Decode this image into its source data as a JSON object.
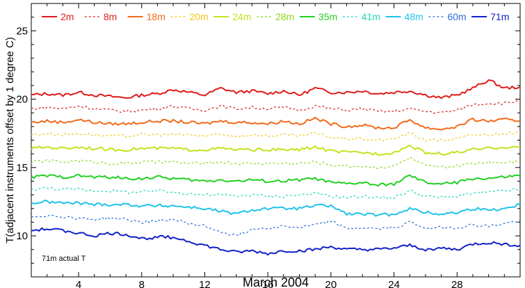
{
  "chart_data": {
    "type": "line",
    "title": "",
    "xlabel": "March 2004",
    "ylabel": "T(adjacent instruments offset by 1 degree C)",
    "xlim": [
      1,
      32
    ],
    "ylim": [
      7,
      27
    ],
    "x_ticks": [
      "4",
      "8",
      "12",
      "16",
      "20",
      "24",
      "28"
    ],
    "y_ticks": [
      "10",
      "15",
      "20",
      "25"
    ],
    "annotation": "71m actual T",
    "legend_position": "top",
    "series": [
      {
        "name": "2m",
        "color": "#e01a1a",
        "dash": "solid",
        "x": [
          1,
          2,
          3,
          4,
          5,
          6,
          7,
          8,
          9,
          10,
          11,
          12,
          13,
          14,
          15,
          16,
          17,
          18,
          19,
          20,
          21,
          22,
          23,
          24,
          25,
          26,
          27,
          28,
          29,
          30,
          31,
          32
        ],
        "y": [
          20.3,
          20.4,
          20.3,
          20.5,
          20.3,
          20.2,
          20.1,
          20.3,
          20.4,
          20.7,
          20.5,
          20.3,
          20.8,
          20.5,
          20.6,
          20.4,
          20.6,
          20.3,
          20.8,
          20.5,
          20.5,
          20.6,
          20.4,
          20.5,
          20.6,
          20.3,
          20.1,
          20.3,
          20.8,
          21.4,
          20.8,
          20.9
        ]
      },
      {
        "name": "8m",
        "color": "#d42222",
        "dash": "dotted",
        "x": [
          1,
          2,
          3,
          4,
          5,
          6,
          7,
          8,
          9,
          10,
          11,
          12,
          13,
          14,
          15,
          16,
          17,
          18,
          19,
          20,
          21,
          22,
          23,
          24,
          25,
          26,
          27,
          28,
          29,
          30,
          31,
          32
        ],
        "y": [
          19.3,
          19.4,
          19.3,
          19.5,
          19.3,
          19.2,
          19.1,
          19.2,
          19.3,
          19.5,
          19.3,
          19.2,
          19.5,
          19.3,
          19.4,
          19.3,
          19.4,
          19.2,
          19.5,
          19.3,
          19.2,
          19.3,
          19.1,
          19.1,
          19.3,
          19.1,
          19.0,
          19.2,
          19.6,
          19.7,
          19.7,
          19.9
        ]
      },
      {
        "name": "18m",
        "color": "#f26a1b",
        "dash": "solid",
        "x": [
          1,
          2,
          3,
          4,
          5,
          6,
          7,
          8,
          9,
          10,
          11,
          12,
          13,
          14,
          15,
          16,
          17,
          18,
          19,
          20,
          21,
          22,
          23,
          24,
          25,
          26,
          27,
          28,
          29,
          30,
          31,
          32
        ],
        "y": [
          18.3,
          18.4,
          18.3,
          18.5,
          18.3,
          18.2,
          18.2,
          18.3,
          18.4,
          18.4,
          18.3,
          18.2,
          18.4,
          18.3,
          18.3,
          18.2,
          18.4,
          18.2,
          18.6,
          18.2,
          18.0,
          18.1,
          17.9,
          17.9,
          18.5,
          17.9,
          17.8,
          18.0,
          18.5,
          18.4,
          18.5,
          18.4
        ]
      },
      {
        "name": "20m",
        "color": "#f5c518",
        "dash": "dotted",
        "x": [
          1,
          2,
          3,
          4,
          5,
          6,
          7,
          8,
          9,
          10,
          11,
          12,
          13,
          14,
          15,
          16,
          17,
          18,
          19,
          20,
          21,
          22,
          23,
          24,
          25,
          26,
          27,
          28,
          29,
          30,
          31,
          32
        ],
        "y": [
          17.4,
          17.5,
          17.4,
          17.5,
          17.4,
          17.3,
          17.3,
          17.4,
          17.4,
          17.4,
          17.4,
          17.3,
          17.4,
          17.3,
          17.4,
          17.3,
          17.4,
          17.3,
          17.5,
          17.2,
          17.1,
          17.1,
          17.0,
          17.1,
          17.5,
          17.0,
          17.0,
          17.1,
          17.4,
          17.4,
          17.5,
          17.5
        ]
      },
      {
        "name": "24m",
        "color": "#c8e01c",
        "dash": "solid",
        "x": [
          1,
          2,
          3,
          4,
          5,
          6,
          7,
          8,
          9,
          10,
          11,
          12,
          13,
          14,
          15,
          16,
          17,
          18,
          19,
          20,
          21,
          22,
          23,
          24,
          25,
          26,
          27,
          28,
          29,
          30,
          31,
          32
        ],
        "y": [
          16.4,
          16.5,
          16.4,
          16.5,
          16.4,
          16.3,
          16.3,
          16.4,
          16.4,
          16.4,
          16.3,
          16.3,
          16.4,
          16.3,
          16.3,
          16.3,
          16.3,
          16.3,
          16.5,
          16.2,
          16.1,
          16.1,
          16.0,
          16.1,
          16.6,
          16.1,
          16.0,
          16.1,
          16.3,
          16.4,
          16.5,
          16.5
        ]
      },
      {
        "name": "28m",
        "color": "#8ed61c",
        "dash": "dotted",
        "x": [
          1,
          2,
          3,
          4,
          5,
          6,
          7,
          8,
          9,
          10,
          11,
          12,
          13,
          14,
          15,
          16,
          17,
          18,
          19,
          20,
          21,
          22,
          23,
          24,
          25,
          26,
          27,
          28,
          29,
          30,
          31,
          32
        ],
        "y": [
          15.4,
          15.5,
          15.4,
          15.5,
          15.4,
          15.3,
          15.3,
          15.4,
          15.4,
          15.4,
          15.3,
          15.3,
          15.4,
          15.3,
          15.3,
          15.3,
          15.3,
          15.3,
          15.4,
          15.2,
          15.1,
          15.1,
          15.0,
          15.1,
          15.7,
          15.1,
          15.0,
          15.1,
          15.3,
          15.4,
          15.4,
          15.5
        ]
      },
      {
        "name": "35m",
        "color": "#22d022",
        "dash": "solid",
        "x": [
          1,
          2,
          3,
          4,
          5,
          6,
          7,
          8,
          9,
          10,
          11,
          12,
          13,
          14,
          15,
          16,
          17,
          18,
          19,
          20,
          21,
          22,
          23,
          24,
          25,
          26,
          27,
          28,
          29,
          30,
          31,
          32
        ],
        "y": [
          14.3,
          14.4,
          14.3,
          14.4,
          14.3,
          14.3,
          14.2,
          14.2,
          14.3,
          14.2,
          14.1,
          14.0,
          14.1,
          14.0,
          14.1,
          14.0,
          14.0,
          14.1,
          14.2,
          13.9,
          13.8,
          13.9,
          13.7,
          13.8,
          14.4,
          13.9,
          13.8,
          13.9,
          14.2,
          14.2,
          14.3,
          14.4
        ]
      },
      {
        "name": "41m",
        "color": "#20d6b8",
        "dash": "dotted",
        "x": [
          1,
          2,
          3,
          4,
          5,
          6,
          7,
          8,
          9,
          10,
          11,
          12,
          13,
          14,
          15,
          16,
          17,
          18,
          19,
          20,
          21,
          22,
          23,
          24,
          25,
          26,
          27,
          28,
          29,
          30,
          31,
          32
        ],
        "y": [
          13.4,
          13.5,
          13.4,
          13.4,
          13.3,
          13.3,
          13.2,
          13.2,
          13.3,
          13.2,
          13.1,
          13.0,
          13.0,
          12.9,
          13.0,
          12.9,
          12.9,
          13.0,
          13.1,
          12.9,
          12.8,
          12.9,
          12.8,
          12.8,
          13.3,
          12.9,
          12.8,
          12.9,
          13.1,
          13.2,
          13.3,
          13.4
        ]
      },
      {
        "name": "48m",
        "color": "#1fc3e6",
        "dash": "solid",
        "x": [
          1,
          2,
          3,
          4,
          5,
          6,
          7,
          8,
          9,
          10,
          11,
          12,
          13,
          14,
          15,
          16,
          17,
          18,
          19,
          20,
          21,
          22,
          23,
          24,
          25,
          26,
          27,
          28,
          29,
          30,
          31,
          32
        ],
        "y": [
          12.4,
          12.5,
          12.4,
          12.4,
          12.3,
          12.3,
          12.3,
          12.2,
          12.2,
          12.2,
          12.1,
          12.0,
          11.8,
          11.6,
          11.9,
          12.0,
          12.0,
          12.0,
          12.2,
          12.2,
          11.6,
          11.6,
          11.5,
          11.6,
          12.0,
          11.7,
          11.6,
          11.7,
          12.0,
          11.9,
          12.0,
          12.3
        ]
      },
      {
        "name": "60m",
        "color": "#2a6fd6",
        "dash": "dotted",
        "x": [
          1,
          2,
          3,
          4,
          5,
          6,
          7,
          8,
          9,
          10,
          11,
          12,
          13,
          14,
          15,
          16,
          17,
          18,
          19,
          20,
          21,
          22,
          23,
          24,
          25,
          26,
          27,
          28,
          29,
          30,
          31,
          32
        ],
        "y": [
          11.4,
          11.5,
          11.4,
          11.3,
          11.2,
          11.3,
          11.2,
          11.0,
          11.1,
          11.2,
          10.9,
          10.7,
          10.3,
          10.0,
          10.5,
          10.6,
          10.7,
          10.6,
          10.8,
          11.1,
          10.5,
          10.6,
          10.5,
          10.6,
          11.0,
          10.6,
          10.6,
          10.6,
          10.8,
          10.7,
          10.9,
          11.1
        ]
      },
      {
        "name": "71m",
        "color": "#1020c8",
        "dash": "solid",
        "x": [
          1,
          2,
          3,
          4,
          5,
          6,
          7,
          8,
          9,
          10,
          11,
          12,
          13,
          14,
          15,
          16,
          17,
          18,
          19,
          20,
          21,
          22,
          23,
          24,
          25,
          26,
          27,
          28,
          29,
          30,
          31,
          32
        ],
        "y": [
          10.4,
          10.5,
          10.4,
          10.2,
          10.0,
          10.2,
          10.1,
          9.8,
          9.9,
          9.9,
          9.6,
          9.3,
          9.0,
          8.8,
          8.9,
          8.7,
          8.9,
          8.9,
          9.0,
          9.2,
          9.0,
          9.0,
          9.0,
          9.1,
          9.3,
          9.0,
          9.1,
          9.0,
          9.4,
          9.5,
          9.4,
          9.3
        ]
      }
    ]
  }
}
